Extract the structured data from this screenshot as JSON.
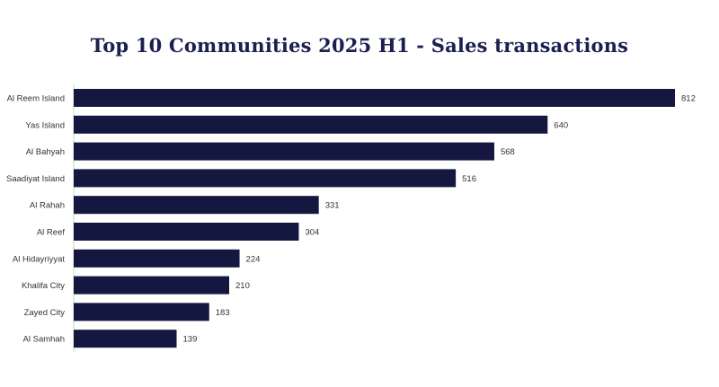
{
  "chart_data": {
    "type": "bar",
    "orientation": "horizontal",
    "title": "Top 10 Communities 2025 H1 - Sales transactions",
    "xlabel": "",
    "ylabel": "",
    "categories": [
      "Al Reem Island",
      "Yas Island",
      "Al Bahyah",
      "Saadiyat Island",
      "Al Rahah",
      "Al Reef",
      "Al Hidayriyyat",
      "Khalifa City",
      "Zayed City",
      "Al Samhah"
    ],
    "values": [
      812,
      640,
      568,
      516,
      331,
      304,
      224,
      210,
      183,
      139
    ],
    "value_labels": [
      "812",
      "640",
      "568",
      "516",
      "331",
      "304",
      "224",
      "210",
      "183",
      "139"
    ],
    "xlim": [
      0,
      812
    ],
    "grid": false,
    "legend": "none",
    "bar_color": "#14173f",
    "title_color": "#1c2050"
  }
}
